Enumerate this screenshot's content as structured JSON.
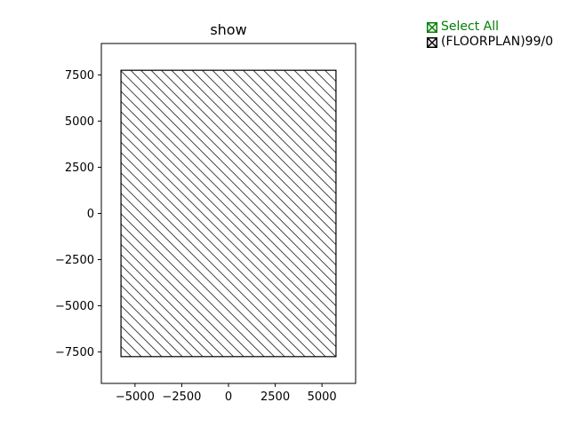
{
  "chart_data": {
    "type": "area",
    "title": "show",
    "xlabel": "",
    "ylabel": "",
    "xlim": [
      -6800,
      6800
    ],
    "ylim": [
      -9200,
      9200
    ],
    "x_ticks": [
      -5000,
      -2500,
      0,
      2500,
      5000
    ],
    "x_tick_labels": [
      "−5000",
      "−2500",
      "0",
      "2500",
      "5000"
    ],
    "y_ticks": [
      7500,
      5000,
      2500,
      0,
      -2500,
      -5000,
      -7500
    ],
    "y_tick_labels": [
      "7500",
      "5000",
      "2500",
      "0",
      "−2500",
      "−5000",
      "−7500"
    ],
    "grid": false,
    "shapes": [
      {
        "layer": "(FLOORPLAN)99/0",
        "kind": "hatched-rectangle",
        "x_range": [
          -5750,
          5750
        ],
        "y_range": [
          -7750,
          7750
        ]
      }
    ]
  },
  "legend": {
    "select_all": {
      "label": "Select All",
      "color": "#008000",
      "checked": true
    },
    "layers": [
      {
        "label": "(FLOORPLAN)99/0",
        "color": "#000000",
        "checked": true
      }
    ]
  }
}
